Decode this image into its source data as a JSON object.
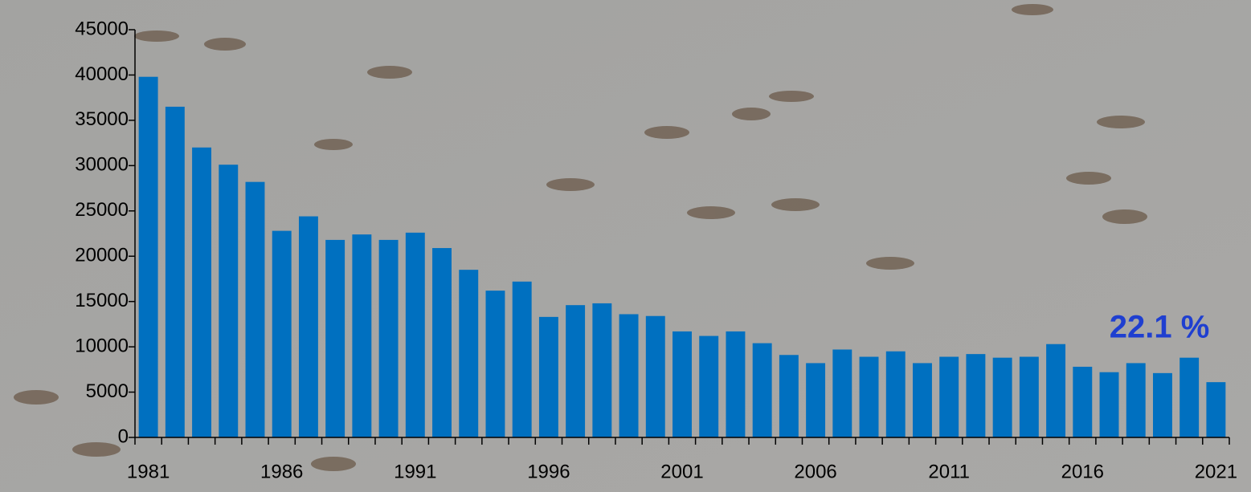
{
  "chart_data": {
    "type": "bar",
    "categories": [
      "1981",
      null,
      null,
      null,
      null,
      "1986",
      null,
      null,
      null,
      null,
      "1991",
      null,
      null,
      null,
      null,
      "1996",
      null,
      null,
      null,
      null,
      "2001",
      null,
      null,
      null,
      null,
      "2006",
      null,
      null,
      null,
      null,
      "2011",
      null,
      null,
      null,
      null,
      "2016",
      null,
      null,
      null,
      null,
      "2021"
    ],
    "values": [
      39800,
      36500,
      32000,
      30100,
      28200,
      22800,
      24400,
      21800,
      22400,
      21800,
      22600,
      20900,
      18500,
      16200,
      17200,
      13300,
      14600,
      14800,
      13600,
      13400,
      11700,
      11200,
      11700,
      10400,
      9100,
      8200,
      9700,
      8900,
      9500,
      8200,
      8900,
      9200,
      8800,
      8900,
      10300,
      7800,
      7200,
      8200,
      7100,
      8800,
      6100
    ],
    "color": "#0070c0",
    "ylim": [
      0,
      45000
    ],
    "yticks": [
      0,
      5000,
      10000,
      15000,
      20000,
      25000,
      30000,
      35000,
      40000,
      45000
    ],
    "annotation": "22.1 %",
    "annotation_color": "#1f3fd0"
  }
}
